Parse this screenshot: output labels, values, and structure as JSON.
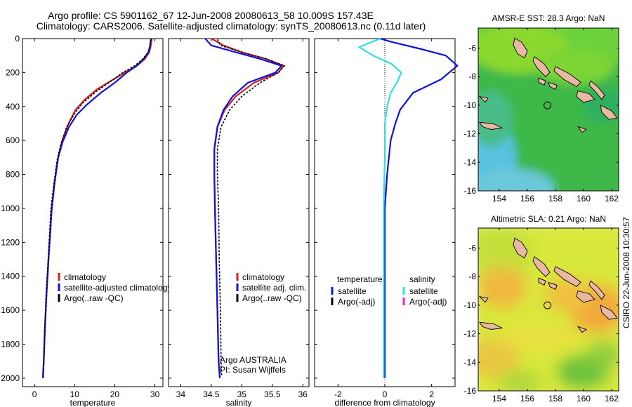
{
  "header": {
    "line1": "Argo profile: CS 5901162_67 12-Jun-2008 20080613_58 10.009S 157.43E",
    "line2": "Climatology: CARS2006. Satellite-adjusted climatology: synTS_20080613.nc (0.11d later)"
  },
  "side_label": "CSIRO 22-Jun-2008 10:30:57",
  "colors": {
    "climatology": "#d42020",
    "satellite": "#1010e0",
    "argo": "#000000",
    "salinity_satellite": "#30e0e0",
    "salinity_argo": "#e020e0"
  },
  "chart_data": [
    {
      "id": "temperature",
      "type": "line",
      "xlabel": "temperature",
      "ylabel": "",
      "xlim": [
        -3,
        32
      ],
      "ylim": [
        2050,
        0
      ],
      "xticks": [
        0,
        10,
        20,
        30
      ],
      "yticks": [
        0,
        200,
        400,
        600,
        800,
        1000,
        1200,
        1400,
        1600,
        1800,
        2000
      ],
      "legend": [
        "climatology",
        "satellite-adjusted climatology",
        "Argo(..raw -QC)"
      ],
      "legend_position": "lower-right",
      "series": [
        {
          "name": "climatology",
          "color": "#d42020",
          "x": [
            29.2,
            29.0,
            28.6,
            27.5,
            25.5,
            22.5,
            19.0,
            15.5,
            12.5,
            10.2,
            8.5,
            6.9,
            5.9,
            5.0,
            4.3,
            3.5,
            3.0,
            2.6,
            2.3,
            2.1
          ],
          "y": [
            0,
            40,
            80,
            120,
            160,
            200,
            250,
            300,
            360,
            420,
            500,
            600,
            700,
            850,
            1000,
            1300,
            1500,
            1700,
            1900,
            2000
          ]
        },
        {
          "name": "satellite-adjusted climatology",
          "color": "#1010e0",
          "x": [
            29.0,
            28.8,
            28.4,
            27.2,
            25.5,
            23.0,
            20.0,
            16.5,
            13.0,
            10.5,
            8.6,
            7.0,
            5.9,
            5.0,
            4.3,
            3.5,
            3.0,
            2.6,
            2.3,
            2.1
          ],
          "y": [
            0,
            40,
            80,
            120,
            160,
            200,
            260,
            320,
            390,
            450,
            520,
            610,
            700,
            850,
            1000,
            1300,
            1500,
            1700,
            1900,
            2000
          ]
        },
        {
          "name": "Argo(..raw -QC)",
          "color": "#000000",
          "dash": "3,2",
          "x": [
            29.0,
            28.8,
            28.3,
            27.0,
            25.0,
            22.0,
            18.5,
            15.5,
            12.0,
            10.0,
            8.0,
            6.6,
            5.6,
            4.8,
            4.1,
            3.4,
            2.9,
            2.6,
            2.3,
            2.1
          ],
          "y": [
            5,
            40,
            80,
            120,
            160,
            200,
            260,
            310,
            380,
            440,
            520,
            620,
            720,
            860,
            1000,
            1300,
            1500,
            1700,
            1900,
            1990
          ]
        }
      ]
    },
    {
      "id": "salinity",
      "type": "line",
      "xlabel": "salinity",
      "ylabel": "",
      "xlim": [
        33.8,
        36.1
      ],
      "ylim": [
        2050,
        0
      ],
      "xticks": [
        34,
        34.5,
        35,
        35.5,
        36
      ],
      "legend": [
        "climatology",
        "satellite adj. clim.",
        "Argo(..raw -QC)"
      ],
      "legend_position": "lower-right",
      "annotation": [
        "Argo AUSTRALIA",
        "PI: Susan Wijffels"
      ],
      "series": [
        {
          "name": "climatology",
          "color": "#d42020",
          "x": [
            34.5,
            34.7,
            35.0,
            35.4,
            35.68,
            35.6,
            35.2,
            34.9,
            34.72,
            34.6,
            34.55,
            34.55,
            34.56,
            34.58,
            34.6,
            34.62,
            34.64
          ],
          "y": [
            0,
            40,
            80,
            120,
            160,
            200,
            260,
            340,
            420,
            520,
            650,
            800,
            1000,
            1300,
            1600,
            1900,
            2000
          ]
        },
        {
          "name": "satellite adj. clim.",
          "color": "#1010e0",
          "x": [
            34.4,
            34.5,
            34.9,
            35.3,
            35.65,
            35.55,
            35.1,
            34.85,
            34.7,
            34.6,
            34.55,
            34.55,
            34.56,
            34.58,
            34.6,
            34.62,
            34.64
          ],
          "y": [
            0,
            40,
            80,
            120,
            160,
            200,
            260,
            340,
            420,
            520,
            650,
            800,
            1000,
            1300,
            1600,
            1900,
            2000
          ]
        },
        {
          "name": "Argo(..raw -QC)",
          "color": "#000000",
          "dash": "3,2",
          "x": [
            34.6,
            34.65,
            35.0,
            35.4,
            35.7,
            35.6,
            35.3,
            35.0,
            34.8,
            34.66,
            34.6,
            34.6,
            34.62,
            34.63,
            34.65,
            34.66,
            34.67
          ],
          "y": [
            5,
            40,
            80,
            120,
            160,
            200,
            260,
            340,
            420,
            520,
            650,
            800,
            1000,
            1300,
            1600,
            1900,
            1990
          ]
        }
      ]
    },
    {
      "id": "difference",
      "type": "line",
      "xlabel": "difference from climatology",
      "ylabel": "",
      "xlim": [
        -3,
        3
      ],
      "ylim": [
        2050,
        0
      ],
      "xticks": [
        -2,
        0,
        2
      ],
      "legend": [
        "temperature",
        "satellite",
        "Argo(-adj)",
        "salinity",
        "satellite",
        "Argo(-adj)"
      ],
      "legend_position": "lower",
      "series": [
        {
          "name": "temperature satellite",
          "color": "#1010e0",
          "x": [
            -0.2,
            0.3,
            1.5,
            2.6,
            3.1,
            2.4,
            1.2,
            0.65,
            0.45,
            0.25,
            0.1,
            0.0,
            0.0,
            0.0,
            0.0,
            0.0
          ],
          "y": [
            0,
            20,
            60,
            100,
            160,
            240,
            320,
            420,
            500,
            600,
            800,
            1000,
            1200,
            1500,
            1800,
            2000
          ]
        },
        {
          "name": "salinity satellite",
          "color": "#30e0e0",
          "x": [
            -0.2,
            -1.1,
            -0.5,
            0.3,
            0.7,
            0.55,
            0.25,
            0.1,
            0.0,
            0.0,
            -0.05,
            -0.05,
            -0.05,
            -0.05
          ],
          "y": [
            0,
            50,
            100,
            150,
            200,
            250,
            320,
            400,
            500,
            700,
            1000,
            1300,
            1700,
            2000
          ]
        }
      ]
    }
  ],
  "maps": [
    {
      "id": "sst",
      "title": "AMSR-E SST: 28.3 Argo: NaN",
      "xticks": [
        154,
        156,
        158,
        160,
        162
      ],
      "yticks": [
        -6,
        -8,
        -10,
        -12,
        -14,
        -16
      ],
      "xlim": [
        152.5,
        162.5
      ],
      "ylim": [
        -16,
        -4.6
      ],
      "argo_position": [
        157.43,
        -10.01
      ]
    },
    {
      "id": "sla",
      "title": "Altimetric SLA: 0.21 Argo: NaN",
      "xticks": [
        154,
        156,
        158,
        160,
        162
      ],
      "yticks": [
        -6,
        -8,
        -10,
        -12,
        -14,
        -16
      ],
      "xlim": [
        152.5,
        162.5
      ],
      "ylim": [
        -16,
        -4.6
      ],
      "argo_position": [
        157.43,
        -10.01
      ]
    }
  ]
}
